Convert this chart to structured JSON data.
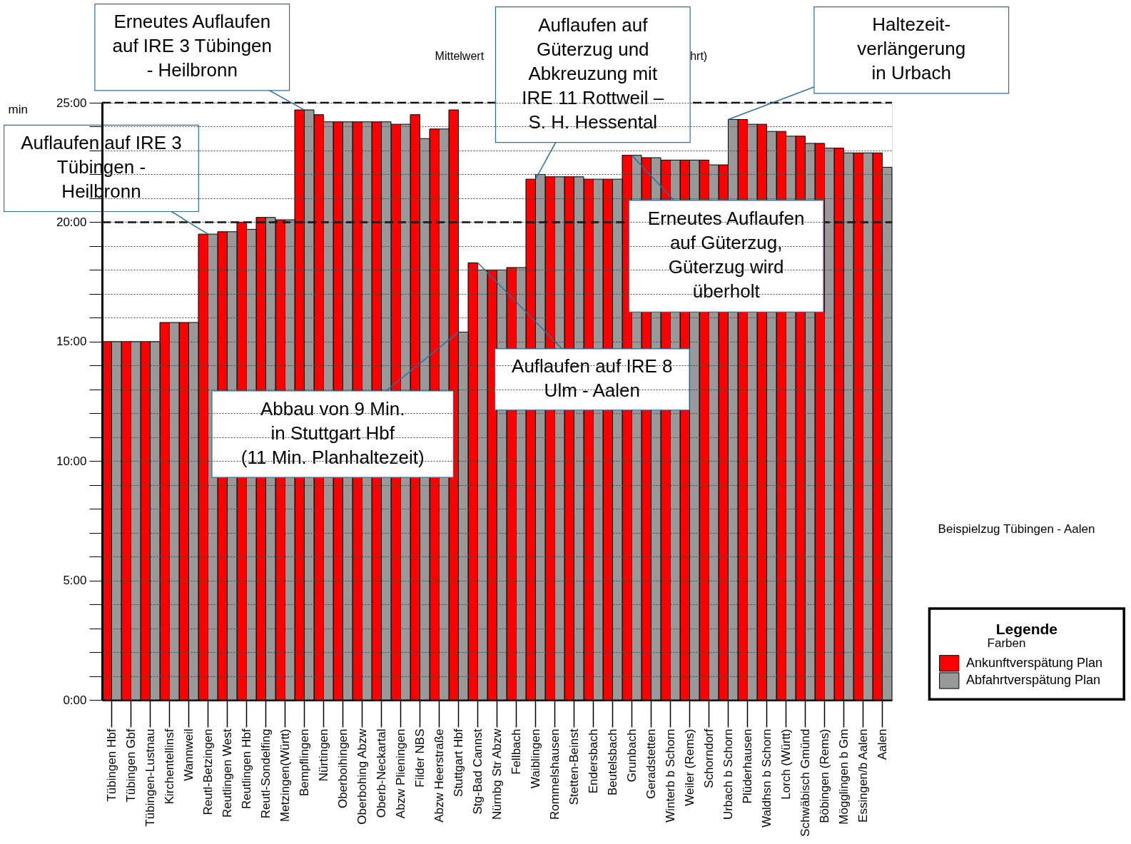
{
  "chart_data": {
    "type": "bar",
    "ylabel": "min",
    "legend_title": "Legende",
    "legend": "right",
    "grid": "y",
    "categories": [
      "Tübingen Hbf",
      "Tübingen Gbf",
      "Tübingen-Lustnau",
      "Kirchentellinsf",
      "Wannweil",
      "Reutl-Betzingen",
      "Reutlingen West",
      "Reutlingen Hbf",
      "Reutl-Sondelfing",
      "Metzingen(Württ)",
      "Bempflingen",
      "Nürtingen",
      "Oberboihingen",
      "Oberbohing Abzw",
      "Oberb-Neckartal",
      "Abzw Plieningen",
      "Filder NBS",
      "Abzw Heerstraße",
      "Stuttgart Hbf",
      "Stg-Bad Cannst",
      "Nürnbg Str Abzw",
      "Fellbach",
      "Waiblingen",
      "Rommelshausen",
      "Stetten-Beinst",
      "Endersbach",
      "Beutelsbach",
      "Grunbach",
      "Geradstetten",
      "Winterb b Schorn",
      "Weiler (Rems)",
      "Schorndorf",
      "Urbach b Schorn",
      "Plüderhausen",
      "Waldhsn b Schorn",
      "Lorch (Württ)",
      "Schwäbisch Gmünd",
      "Böbingen (Rems)",
      "Mögglingen b Gm",
      "Essingen/b Aalen",
      "Aalen"
    ],
    "series": [
      {
        "name": "Ankunftverspätung Plan",
        "color": "#ff0000",
        "values": [
          15.0,
          15.0,
          15.0,
          15.8,
          15.8,
          19.5,
          19.6,
          20.0,
          20.2,
          20.1,
          24.7,
          24.5,
          24.2,
          24.2,
          24.2,
          24.1,
          24.5,
          23.9,
          24.7,
          18.3,
          18.0,
          18.1,
          21.8,
          21.9,
          21.9,
          21.8,
          21.8,
          22.8,
          22.7,
          22.6,
          22.6,
          22.6,
          22.4,
          24.3,
          24.1,
          23.8,
          23.6,
          23.3,
          23.1,
          22.9,
          22.9
        ]
      },
      {
        "name": "Abfahrtverspätung Plan",
        "color": "#999999",
        "values": [
          15.0,
          15.0,
          15.0,
          15.8,
          15.8,
          19.5,
          19.6,
          19.7,
          20.2,
          20.1,
          24.7,
          24.2,
          24.2,
          24.2,
          24.2,
          24.1,
          23.5,
          23.9,
          15.4,
          18.0,
          18.0,
          18.1,
          22.0,
          21.9,
          21.9,
          21.8,
          21.8,
          22.8,
          22.7,
          22.6,
          22.6,
          22.4,
          24.3,
          24.1,
          23.8,
          23.6,
          23.3,
          23.1,
          22.9,
          22.9,
          22.3
        ]
      }
    ],
    "ylim": [
      0,
      25
    ],
    "yticks": [
      {
        "value": 0,
        "label": "0:00"
      },
      {
        "value": 1,
        "label": null
      },
      {
        "value": 2,
        "label": null
      },
      {
        "value": 3,
        "label": null
      },
      {
        "value": 4,
        "label": null
      },
      {
        "value": 5,
        "label": "5:00"
      },
      {
        "value": 6,
        "label": null
      },
      {
        "value": 7,
        "label": null
      },
      {
        "value": 8,
        "label": null
      },
      {
        "value": 9,
        "label": null
      },
      {
        "value": 10,
        "label": "10:00"
      },
      {
        "value": 11,
        "label": null
      },
      {
        "value": 12,
        "label": null
      },
      {
        "value": 13,
        "label": null
      },
      {
        "value": 14,
        "label": null
      },
      {
        "value": 15,
        "label": "15:00"
      },
      {
        "value": 16,
        "label": null
      },
      {
        "value": 17,
        "label": null
      },
      {
        "value": 18,
        "label": null
      },
      {
        "value": 19,
        "label": null
      },
      {
        "value": 20,
        "label": "20:00"
      },
      {
        "value": 21,
        "label": null
      },
      {
        "value": 22,
        "label": null
      },
      {
        "value": 23,
        "label": null
      },
      {
        "value": 24,
        "label": null
      },
      {
        "value": 25,
        "label": "25:00"
      }
    ],
    "ref_lines": [
      {
        "axis": "y",
        "value": 20,
        "line_style": "dashed",
        "color": "#000000"
      },
      {
        "axis": "y",
        "value": 25,
        "line_style": "dashed",
        "color": "#000000"
      }
    ],
    "annotations": [
      {
        "text": "Erneutes Auflaufen\nauf IRE 3 Tübingen\n- Heilbronn",
        "x": "Bempflingen",
        "y": 24.7
      },
      {
        "text": "Auflaufen auf IRE 3\nTübingen -\nHeilbronn",
        "x": "Reutl-Betzingen",
        "y": 19.5
      },
      {
        "text": "Auflaufen auf\nGüterzug und\nAbkreuzung mit\nIRE 11 Rottweil –\nS. H. Hessental",
        "x": "Waiblingen",
        "y": 21.8
      },
      {
        "text": "Haltezeit-\nverlängerung\nin Urbach",
        "x": "Urbach b Schorn",
        "y": 24.3
      },
      {
        "text": "Erneutes Auflaufen\nauf Güterzug,\nGüterzug wird\nüberholt",
        "x": "Grunbach",
        "y": 22.8
      },
      {
        "text": "Auflaufen auf IRE 8\nUlm - Aalen",
        "x": "Stg-Bad Cannst",
        "y": 18.3
      },
      {
        "text": "Abbau von 9 Min.\nin Stuttgart Hbf\n(11 Min. Planhaltezeit)",
        "x": "Stuttgart Hbf",
        "y": 15.4
      },
      "Mittelwert",
      "hrt)",
      "Beispielzug Tübingen - Aalen",
      "Farben"
    ]
  }
}
